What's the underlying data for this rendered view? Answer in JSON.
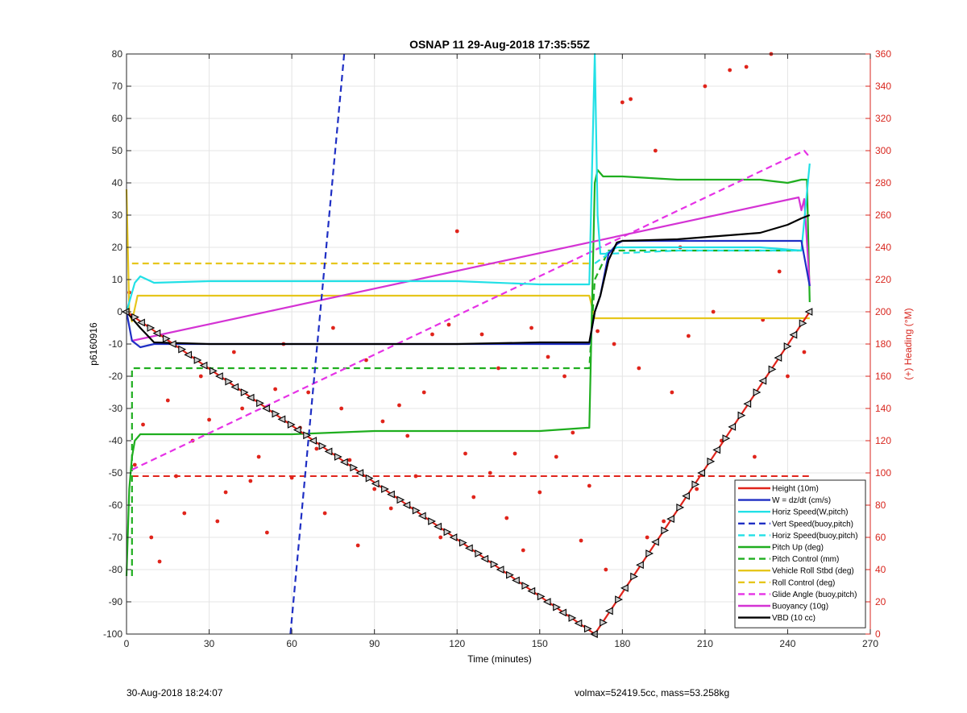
{
  "chart_data": {
    "type": "line",
    "title": "OSNAP 11 29-Aug-2018 17:35:55Z",
    "xlabel": "Time (minutes)",
    "ylabel": "p6160916",
    "y2label": "(+) Heading (°M)",
    "xlim": [
      0,
      270
    ],
    "ylim": [
      -100,
      80
    ],
    "y2lim": [
      0,
      360
    ],
    "x_ticks": [
      0,
      30,
      60,
      90,
      120,
      150,
      180,
      210,
      240,
      270
    ],
    "y_ticks": [
      -100,
      -90,
      -80,
      -70,
      -60,
      -50,
      -40,
      -30,
      -20,
      -10,
      0,
      10,
      20,
      30,
      40,
      50,
      60,
      70,
      80
    ],
    "y2_ticks": [
      0,
      20,
      40,
      60,
      80,
      100,
      120,
      140,
      160,
      180,
      200,
      220,
      240,
      260,
      280,
      300,
      320,
      340,
      360
    ],
    "grid": true,
    "legend_position": "bottom-right",
    "colors": {
      "height": "#e0241b",
      "w": "#1f2fc4",
      "horiz": "#22e0e6",
      "vert": "#1f2fc4",
      "pitch": "#1fae1f",
      "roll": "#e6c61c",
      "glide": "#e632e6",
      "buoyancy": "#d433d4",
      "vbd": "#000000",
      "heading": "#e0241b",
      "right_axis": "#d8261e"
    },
    "series": [
      {
        "name": "Height (10m)",
        "style": "solid",
        "color": "#e0241b",
        "markers": "triangles",
        "x": [
          0,
          170,
          248
        ],
        "y": [
          0,
          -100,
          0
        ]
      },
      {
        "name": "W = dz/dt (cm/s)",
        "style": "solid",
        "color": "#1f2fc4",
        "x": [
          0,
          2,
          5,
          10,
          30,
          60,
          90,
          120,
          150,
          168,
          170,
          172,
          175,
          178,
          180,
          200,
          230,
          245,
          248
        ],
        "y": [
          0,
          -9,
          -11,
          -10,
          -10,
          -10,
          -10,
          -10,
          -10,
          -10,
          0,
          5,
          18,
          21,
          22,
          22,
          22,
          22,
          8
        ]
      },
      {
        "name": "Horiz Speed(W,pitch)",
        "style": "solid",
        "color": "#22e0e6",
        "x": [
          0,
          3,
          5,
          10,
          30,
          60,
          90,
          120,
          150,
          168,
          170,
          171,
          172,
          174,
          178,
          200,
          230,
          245,
          248
        ],
        "y": [
          0,
          9,
          11,
          9,
          9.5,
          9.5,
          9.5,
          9.5,
          8.5,
          8.5,
          80,
          30,
          18,
          18,
          20,
          20,
          20,
          19,
          46
        ]
      },
      {
        "name": "Vert Speed(buoy,pitch)",
        "style": "dashed",
        "color": "#1f2fc4",
        "x": [
          59.5,
          79
        ],
        "y": [
          -100,
          80
        ]
      },
      {
        "name": "Horiz Speed(buoy,pitch)",
        "style": "dashed",
        "color": "#22e0e6",
        "x": [
          170,
          175,
          200,
          245
        ],
        "y": [
          15,
          18,
          19,
          19
        ]
      },
      {
        "name": "Pitch Up (deg)",
        "style": "solid",
        "color": "#1fae1f",
        "x": [
          0,
          1,
          2,
          3,
          5,
          10,
          30,
          60,
          90,
          120,
          150,
          167,
          168,
          170,
          171,
          173,
          175,
          180,
          200,
          230,
          240,
          245,
          247,
          248
        ],
        "y": [
          -82,
          -55,
          -45,
          -40,
          -38,
          -38,
          -38,
          -38,
          -37,
          -37,
          -37,
          -36,
          -36,
          40,
          44,
          42,
          42,
          42,
          41,
          41,
          40,
          41,
          41,
          3
        ]
      },
      {
        "name": "Pitch Control (mm)",
        "style": "dashed",
        "color": "#1fae1f",
        "x": [
          2,
          2,
          168,
          170,
          175,
          245
        ],
        "y": [
          -82,
          -17.5,
          -17.5,
          10,
          19,
          19
        ]
      },
      {
        "name": "Vehicle Roll Stbd (deg)",
        "style": "solid",
        "color": "#e6c61c",
        "x": [
          0,
          1,
          2,
          4,
          168,
          170,
          248
        ],
        "y": [
          38,
          0,
          -3,
          5,
          5,
          -2,
          -2
        ]
      },
      {
        "name": "Roll Control (deg)",
        "style": "dashed",
        "color": "#e6c61c",
        "x": [
          2,
          168
        ],
        "y": [
          15,
          15
        ]
      },
      {
        "name": "Glide Angle (buoy,pitch)",
        "style": "dashed",
        "color": "#e632e6",
        "x": [
          2,
          246,
          248
        ],
        "y": [
          -49,
          50,
          48
        ]
      },
      {
        "name": "Buoyancy (10g)",
        "style": "solid",
        "color": "#d433d4",
        "x": [
          2,
          244,
          245,
          246,
          248
        ],
        "y": [
          -9,
          35.5,
          31.5,
          35,
          8
        ]
      },
      {
        "name": "VBD (10 cc)",
        "style": "solid",
        "color": "#000000",
        "x": [
          0,
          2,
          5,
          10,
          30,
          60,
          90,
          120,
          150,
          168,
          170,
          172,
          175,
          178,
          180,
          200,
          230,
          240,
          245,
          248
        ],
        "y": [
          0,
          -2,
          -5,
          -9.5,
          -10,
          -10,
          -10,
          -10,
          -9.5,
          -9.5,
          0,
          5,
          16,
          21.5,
          22,
          22.5,
          24.5,
          27,
          29,
          30
        ]
      }
    ],
    "heading_series": {
      "name": "Heading",
      "color": "#e0241b",
      "style": "points",
      "x": [
        1,
        3,
        6,
        9,
        12,
        15,
        18,
        21,
        24,
        27,
        30,
        33,
        36,
        39,
        42,
        45,
        48,
        51,
        54,
        57,
        60,
        63,
        66,
        69,
        72,
        75,
        78,
        81,
        84,
        87,
        90,
        93,
        96,
        99,
        102,
        105,
        108,
        111,
        114,
        117,
        120,
        123,
        126,
        129,
        132,
        135,
        138,
        141,
        144,
        147,
        150,
        153,
        156,
        159,
        162,
        165,
        168,
        171,
        174,
        177,
        180,
        183,
        186,
        189,
        192,
        195,
        198,
        201,
        204,
        207,
        210,
        213,
        216,
        219,
        222,
        225,
        228,
        231,
        234,
        237,
        240,
        243,
        246
      ],
      "y": [
        212,
        105,
        130,
        60,
        45,
        145,
        98,
        75,
        120,
        160,
        133,
        70,
        88,
        175,
        140,
        95,
        110,
        63,
        152,
        180,
        97,
        128,
        150,
        115,
        75,
        190,
        140,
        108,
        55,
        170,
        90,
        132,
        78,
        142,
        123,
        98,
        150,
        186,
        60,
        192,
        250,
        112,
        85,
        186,
        100,
        165,
        72,
        112,
        52,
        190,
        88,
        172,
        110,
        160,
        125,
        58,
        92,
        188,
        40,
        180,
        330,
        332,
        165,
        60,
        300,
        70,
        150,
        240,
        185,
        90,
        340,
        200,
        120,
        350,
        55,
        352,
        110,
        195,
        360,
        225,
        160,
        50,
        175
      ]
    },
    "heading_reference": {
      "y2": 98,
      "color": "#e0241b",
      "style": "dashed",
      "x": [
        2,
        248
      ]
    }
  },
  "footer": {
    "timestamp": "30-Aug-2018 18:24:07",
    "info": "volmax=52419.5cc, mass=53.258kg"
  }
}
